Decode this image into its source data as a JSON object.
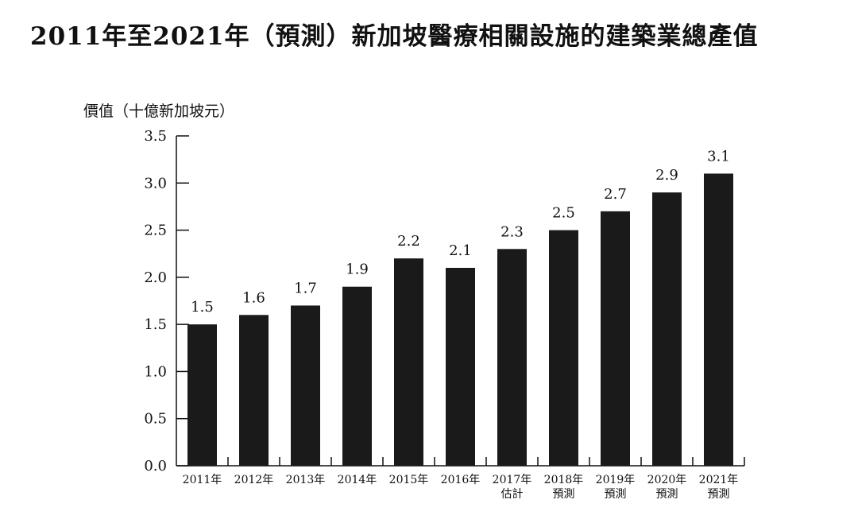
{
  "chart_data": {
    "type": "bar",
    "title": "2011年至2021年（預測）新加坡醫療相關設施的建築業總產值",
    "ylabel": "價值（十億新加坡元）",
    "xlabel": "",
    "ylim": [
      0,
      3.5
    ],
    "yticks": [
      "0.0",
      "0.5",
      "1.0",
      "1.5",
      "2.0",
      "2.5",
      "3.0",
      "3.5"
    ],
    "grid": false,
    "bar_color": "#1a1a1a",
    "categories": [
      [
        "2011年"
      ],
      [
        "2012年"
      ],
      [
        "2013年"
      ],
      [
        "2014年"
      ],
      [
        "2015年"
      ],
      [
        "2016年"
      ],
      [
        "2017年",
        "估計"
      ],
      [
        "2018年",
        "預測"
      ],
      [
        "2019年",
        "預測"
      ],
      [
        "2020年",
        "預測"
      ],
      [
        "2021年",
        "預測"
      ]
    ],
    "values": [
      1.5,
      1.6,
      1.7,
      1.9,
      2.2,
      2.1,
      2.3,
      2.5,
      2.7,
      2.9,
      3.1
    ],
    "value_labels": [
      "1.5",
      "1.6",
      "1.7",
      "1.9",
      "2.2",
      "2.1",
      "2.3",
      "2.5",
      "2.7",
      "2.9",
      "3.1"
    ]
  }
}
